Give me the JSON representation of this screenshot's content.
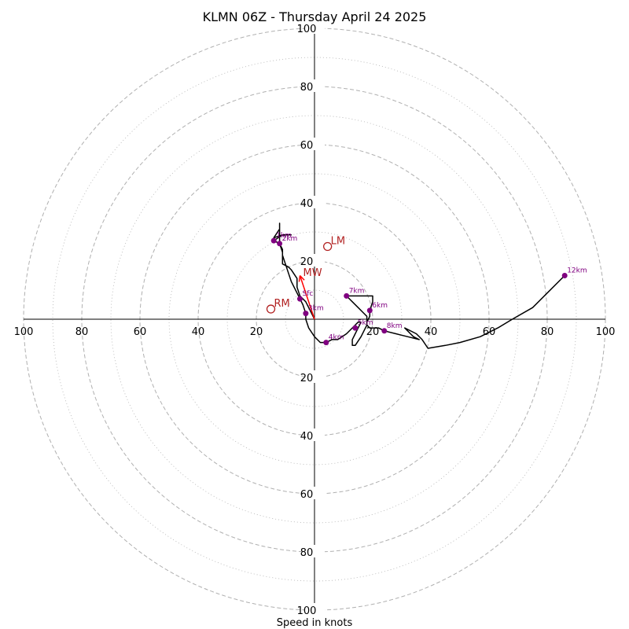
{
  "title": "KLMN 06Z - Thursday April 24 2025",
  "xlabel": "Speed in knots",
  "chart_data": {
    "type": "hodograph",
    "title": "KLMN 06Z - Thursday April 24 2025",
    "xlabel": "Speed in knots",
    "range": 100,
    "ring_step": 10,
    "labeled_rings": [
      20,
      40,
      60,
      80,
      100
    ],
    "tick_labels": [
      "100",
      "80",
      "60",
      "40",
      "20",
      "20",
      "40",
      "60",
      "80",
      "100"
    ],
    "grid": true,
    "colors": {
      "trace": "#000000",
      "height_marker": "#800080",
      "motion": "#b22222",
      "shear": "#ff0000",
      "grid": "#b0b0b0"
    },
    "trace": [
      [
        0,
        0
      ],
      [
        -1,
        2
      ],
      [
        -2,
        4
      ],
      [
        -3,
        6
      ],
      [
        -5,
        8
      ],
      [
        -6,
        11
      ],
      [
        -6,
        14
      ],
      [
        -8,
        17
      ],
      [
        -9,
        18
      ],
      [
        -11,
        19
      ],
      [
        -11,
        23
      ],
      [
        -12,
        26
      ],
      [
        -14,
        27
      ],
      [
        -11,
        29
      ],
      [
        -8,
        29
      ],
      [
        -11,
        29
      ],
      [
        -14,
        28
      ],
      [
        -12,
        31
      ],
      [
        -12,
        33
      ],
      [
        -12,
        29
      ],
      [
        -12,
        26
      ],
      [
        -11,
        24
      ],
      [
        -11,
        22
      ],
      [
        -10,
        19
      ],
      [
        -9,
        16
      ],
      [
        -8,
        13
      ],
      [
        -7,
        11
      ],
      [
        -5,
        7
      ],
      [
        -4,
        5
      ],
      [
        -3,
        2
      ],
      [
        -3,
        0
      ],
      [
        -2,
        -3
      ],
      [
        0,
        -6
      ],
      [
        2,
        -8
      ],
      [
        4,
        -8
      ],
      [
        6,
        -7
      ],
      [
        8,
        -7
      ],
      [
        11,
        -5
      ],
      [
        13,
        -3
      ],
      [
        14,
        -2
      ],
      [
        15,
        -1
      ],
      [
        16,
        -1
      ],
      [
        15,
        -3
      ],
      [
        14,
        -5
      ],
      [
        13,
        -7
      ],
      [
        13,
        -9
      ],
      [
        14,
        -9
      ],
      [
        16,
        -6
      ],
      [
        17,
        -4
      ],
      [
        18,
        -2
      ],
      [
        18,
        1
      ],
      [
        17,
        2
      ],
      [
        15,
        4
      ],
      [
        13,
        6
      ],
      [
        11,
        8
      ],
      [
        11,
        8
      ],
      [
        16,
        8
      ],
      [
        20,
        8
      ],
      [
        20,
        6
      ],
      [
        19,
        3
      ],
      [
        19,
        1
      ],
      [
        18,
        -1
      ],
      [
        18,
        -2
      ],
      [
        19,
        -3
      ],
      [
        21,
        -3
      ],
      [
        22,
        -3
      ],
      [
        24,
        -4
      ],
      [
        28,
        -5
      ],
      [
        32,
        -6
      ],
      [
        36,
        -7
      ],
      [
        34,
        -6
      ],
      [
        31,
        -3
      ],
      [
        35,
        -5
      ],
      [
        37,
        -7
      ],
      [
        39,
        -10
      ],
      [
        45,
        -9
      ],
      [
        50,
        -8
      ],
      [
        57,
        -6
      ],
      [
        63,
        -3
      ],
      [
        68,
        0
      ],
      [
        75,
        4
      ],
      [
        80,
        9
      ],
      [
        86,
        15
      ]
    ],
    "height_markers": [
      {
        "label": "Sfc",
        "x": -5,
        "y": 7
      },
      {
        "label": "1km",
        "x": -14,
        "y": 27
      },
      {
        "label": "2km",
        "x": -12,
        "y": 26
      },
      {
        "label": "3km",
        "x": -3,
        "y": 2
      },
      {
        "label": "4km",
        "x": 4,
        "y": -8
      },
      {
        "label": "5km",
        "x": 14,
        "y": -3
      },
      {
        "label": "6km",
        "x": 19,
        "y": 3
      },
      {
        "label": "7km",
        "x": 11,
        "y": 8
      },
      {
        "label": "8km",
        "x": 24,
        "y": -4
      },
      {
        "label": "12km",
        "x": 86,
        "y": 15
      }
    ],
    "storm_motion": [
      {
        "label": "RM",
        "x": -15,
        "y": 3.5
      },
      {
        "label": "LM",
        "x": 4.5,
        "y": 25
      },
      {
        "label": "MW",
        "x": -5,
        "y": 14
      }
    ],
    "shear_vector": {
      "from": [
        0,
        0
      ],
      "to": [
        -5,
        15
      ]
    }
  }
}
